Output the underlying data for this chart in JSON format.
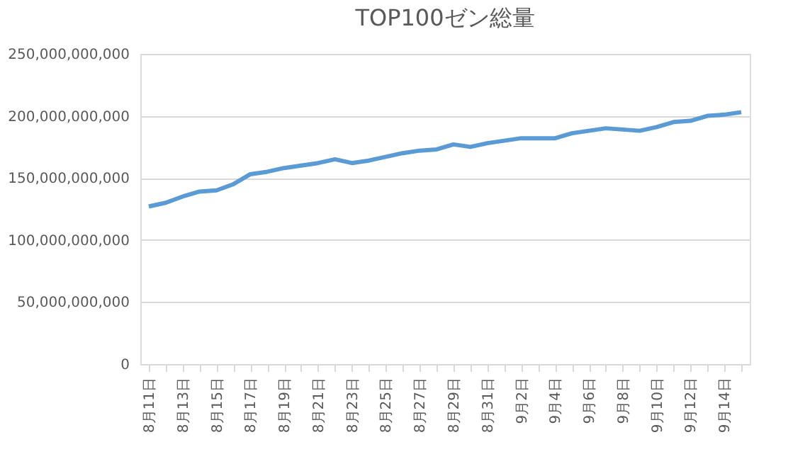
{
  "chart_data": {
    "type": "line",
    "title": "TOP100ゼン総量",
    "categories": [
      "8月11日",
      null,
      "8月13日",
      null,
      "8月15日",
      null,
      "8月17日",
      null,
      "8月19日",
      null,
      "8月21日",
      null,
      "8月23日",
      null,
      "8月25日",
      null,
      "8月27日",
      null,
      "8月29日",
      null,
      "8月31日",
      null,
      "9月2日",
      null,
      "9月4日",
      null,
      "9月6日",
      null,
      "9月8日",
      null,
      "9月10日",
      null,
      "9月12日",
      null,
      "9月14日",
      null
    ],
    "series": [
      {
        "color": "#5b9bd5",
        "values": [
          127000000000,
          130000000000,
          135000000000,
          139000000000,
          140000000000,
          145000000000,
          153000000000,
          155000000000,
          158000000000,
          160000000000,
          162000000000,
          165000000000,
          162000000000,
          164000000000,
          167000000000,
          170000000000,
          172000000000,
          173000000000,
          177000000000,
          175000000000,
          178000000000,
          180000000000,
          182000000000,
          182000000000,
          182000000000,
          186000000000,
          188000000000,
          190000000000,
          189000000000,
          188000000000,
          191000000000,
          195000000000,
          196000000000,
          200000000000,
          201000000000,
          203000000000
        ]
      }
    ],
    "ylim": [
      0,
      250000000000
    ],
    "yticks": [
      0,
      {
        "value": 50000000000,
        "label": "50,000,000,000"
      },
      {
        "value": 100000000000,
        "label": "100,000,000,000"
      },
      {
        "value": 150000000000,
        "label": "150,000,000,000"
      },
      {
        "value": 200000000000,
        "label": "200,000,000,000"
      },
      {
        "value": 250000000000,
        "label": "250,000,000,000"
      }
    ],
    "grid": "y",
    "marker": "none",
    "line_style": "solid"
  }
}
